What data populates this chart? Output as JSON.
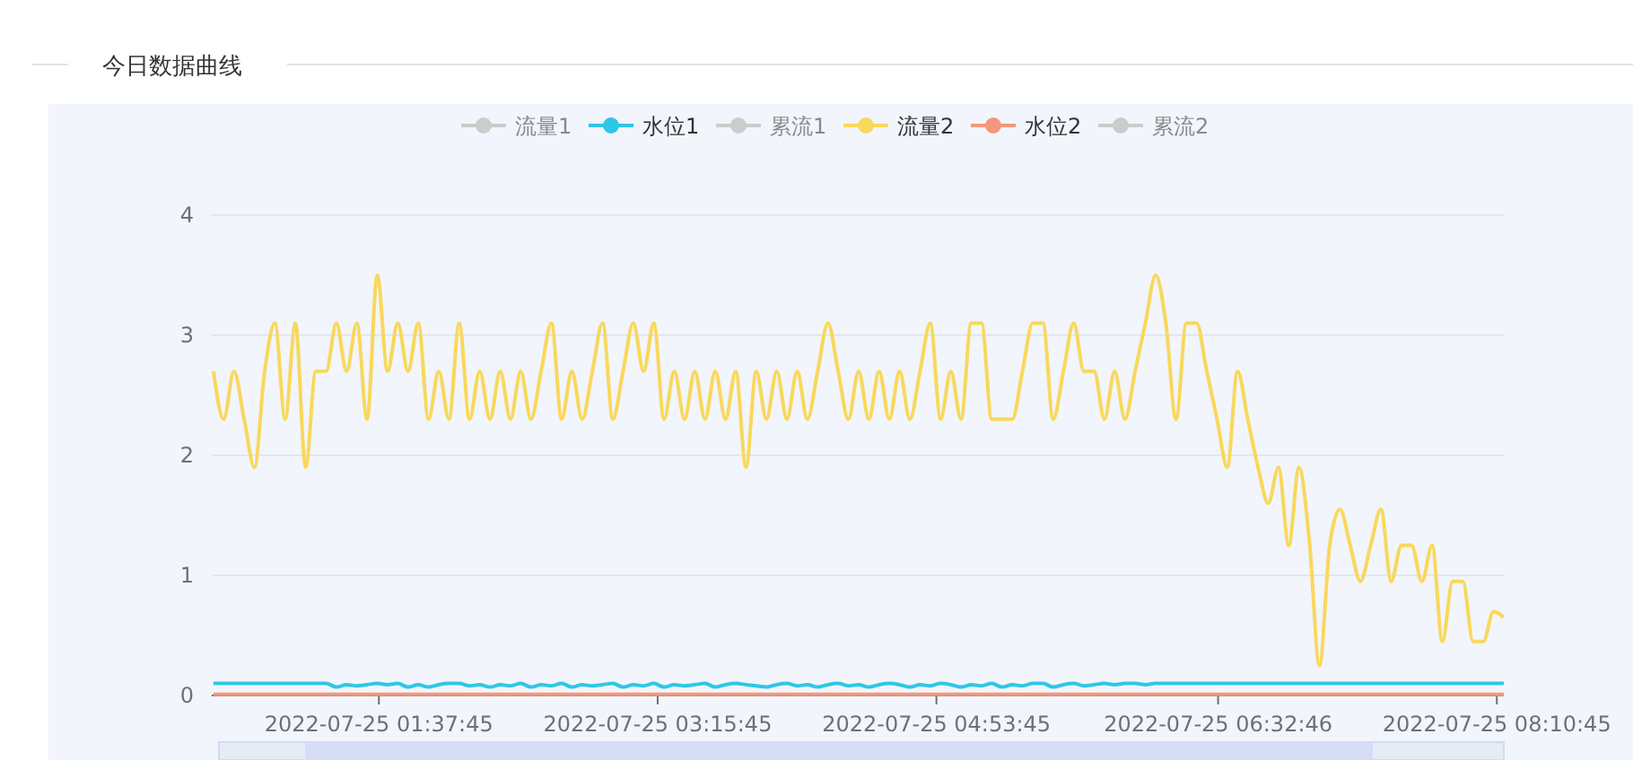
{
  "chart_data": {
    "type": "line",
    "title": "今日数据曲线",
    "legend": "top",
    "grid": "y",
    "ylim": [
      0,
      4
    ],
    "yticks": [
      0,
      1,
      2,
      3,
      4
    ],
    "xlim": [
      "2022-07-25T00:39:00",
      "2022-07-25T08:13:12"
    ],
    "xticks": [
      {
        "value": "2022-07-25T01:37:45",
        "label": "2022-07-25 01:37:45"
      },
      {
        "value": "2022-07-25T03:15:45",
        "label": "2022-07-25 03:15:45"
      },
      {
        "value": "2022-07-25T04:53:45",
        "label": "2022-07-25 04:53:45"
      },
      {
        "value": "2022-07-25T06:32:46",
        "label": "2022-07-25 06:32:46"
      },
      {
        "value": "2022-07-25T08:10:45",
        "label": "2022-07-25 08:10:45"
      }
    ],
    "x": [
      "2022-07-25T00:39:36",
      "2022-07-25T00:43:12",
      "2022-07-25T00:46:48",
      "2022-07-25T00:50:24",
      "2022-07-25T00:54:00",
      "2022-07-25T00:57:36",
      "2022-07-25T01:01:12",
      "2022-07-25T01:04:48",
      "2022-07-25T01:08:24",
      "2022-07-25T01:12:00",
      "2022-07-25T01:15:36",
      "2022-07-25T01:19:12",
      "2022-07-25T01:22:48",
      "2022-07-25T01:26:24",
      "2022-07-25T01:30:00",
      "2022-07-25T01:33:36",
      "2022-07-25T01:37:12",
      "2022-07-25T01:40:48",
      "2022-07-25T01:44:24",
      "2022-07-25T01:48:00",
      "2022-07-25T01:51:36",
      "2022-07-25T01:55:12",
      "2022-07-25T01:58:48",
      "2022-07-25T02:02:24",
      "2022-07-25T02:06:00",
      "2022-07-25T02:09:36",
      "2022-07-25T02:13:12",
      "2022-07-25T02:16:48",
      "2022-07-25T02:20:24",
      "2022-07-25T02:24:00",
      "2022-07-25T02:27:36",
      "2022-07-25T02:31:12",
      "2022-07-25T02:34:48",
      "2022-07-25T02:38:24",
      "2022-07-25T02:42:00",
      "2022-07-25T02:45:36",
      "2022-07-25T02:49:12",
      "2022-07-25T02:52:48",
      "2022-07-25T02:56:24",
      "2022-07-25T03:00:00",
      "2022-07-25T03:03:36",
      "2022-07-25T03:07:12",
      "2022-07-25T03:10:48",
      "2022-07-25T03:14:24",
      "2022-07-25T03:18:00",
      "2022-07-25T03:21:36",
      "2022-07-25T03:25:12",
      "2022-07-25T03:28:48",
      "2022-07-25T03:32:24",
      "2022-07-25T03:36:00",
      "2022-07-25T03:39:36",
      "2022-07-25T03:43:12",
      "2022-07-25T03:46:48",
      "2022-07-25T03:50:24",
      "2022-07-25T03:54:00",
      "2022-07-25T03:57:36",
      "2022-07-25T04:01:12",
      "2022-07-25T04:04:48",
      "2022-07-25T04:08:24",
      "2022-07-25T04:12:00",
      "2022-07-25T04:15:36",
      "2022-07-25T04:19:12",
      "2022-07-25T04:22:48",
      "2022-07-25T04:26:24",
      "2022-07-25T04:30:00",
      "2022-07-25T04:33:36",
      "2022-07-25T04:37:12",
      "2022-07-25T04:40:48",
      "2022-07-25T04:44:24",
      "2022-07-25T04:48:00",
      "2022-07-25T04:51:36",
      "2022-07-25T04:55:12",
      "2022-07-25T04:58:48",
      "2022-07-25T05:02:24",
      "2022-07-25T05:06:00",
      "2022-07-25T05:09:36",
      "2022-07-25T05:13:12",
      "2022-07-25T05:16:48",
      "2022-07-25T05:20:24",
      "2022-07-25T05:24:00",
      "2022-07-25T05:27:36",
      "2022-07-25T05:31:12",
      "2022-07-25T05:34:48",
      "2022-07-25T05:38:24",
      "2022-07-25T05:42:00",
      "2022-07-25T05:45:36",
      "2022-07-25T05:49:12",
      "2022-07-25T05:52:48",
      "2022-07-25T05:56:24",
      "2022-07-25T06:00:00",
      "2022-07-25T06:03:36",
      "2022-07-25T06:07:12",
      "2022-07-25T06:10:48",
      "2022-07-25T06:14:24",
      "2022-07-25T06:18:00",
      "2022-07-25T06:21:36",
      "2022-07-25T06:25:12",
      "2022-07-25T06:28:48",
      "2022-07-25T06:32:24",
      "2022-07-25T06:36:00",
      "2022-07-25T06:39:36",
      "2022-07-25T06:43:12",
      "2022-07-25T06:46:48",
      "2022-07-25T06:50:24",
      "2022-07-25T06:54:00",
      "2022-07-25T06:57:36",
      "2022-07-25T07:01:12",
      "2022-07-25T07:04:48",
      "2022-07-25T07:08:24",
      "2022-07-25T07:12:00",
      "2022-07-25T07:15:36",
      "2022-07-25T07:19:12",
      "2022-07-25T07:22:48",
      "2022-07-25T07:26:24",
      "2022-07-25T07:30:00",
      "2022-07-25T07:33:36",
      "2022-07-25T07:37:12",
      "2022-07-25T07:40:48",
      "2022-07-25T07:44:24",
      "2022-07-25T07:48:00",
      "2022-07-25T07:51:36",
      "2022-07-25T07:55:12",
      "2022-07-25T07:58:48",
      "2022-07-25T08:02:24",
      "2022-07-25T08:06:00",
      "2022-07-25T08:09:36",
      "2022-07-25T08:13:12"
    ],
    "series": [
      {
        "name": "流量1",
        "color": "#cccccc",
        "values": [
          null,
          null,
          null,
          null,
          null,
          null,
          null,
          null,
          null,
          null,
          null,
          null,
          null,
          null,
          null,
          null,
          null,
          null,
          null,
          null,
          null,
          null,
          null,
          null,
          null,
          null,
          null,
          null,
          null,
          null,
          null,
          null,
          null,
          null,
          null,
          null,
          null,
          null,
          null,
          null,
          null,
          null,
          null,
          null,
          null,
          null,
          null,
          null,
          null,
          null,
          null,
          null,
          null,
          null,
          null,
          null,
          null,
          null,
          null,
          null,
          null,
          null,
          null,
          null,
          null,
          null,
          null,
          null,
          null,
          null,
          null,
          null,
          null,
          null,
          null,
          null,
          null,
          null,
          null,
          null,
          null,
          null,
          null,
          null,
          null,
          null,
          null,
          null,
          null,
          null,
          null,
          null,
          null,
          null,
          null,
          null,
          null,
          null,
          null,
          null,
          null,
          null,
          null,
          null,
          null,
          null,
          null,
          null,
          null,
          null,
          null,
          null,
          null,
          null,
          null,
          null,
          null,
          null,
          null,
          null,
          null,
          null,
          null,
          null,
          null,
          null,
          null
        ]
      },
      {
        "name": "水位1",
        "color": "#2ec7e6",
        "values": [
          0.1,
          0.1,
          0.1,
          0.1,
          0.1,
          0.1,
          0.1,
          0.1,
          0.1,
          0.1,
          0.1,
          0.1,
          0.07,
          0.09,
          0.08,
          0.09,
          0.1,
          0.09,
          0.1,
          0.07,
          0.09,
          0.07,
          0.09,
          0.1,
          0.1,
          0.08,
          0.09,
          0.07,
          0.09,
          0.08,
          0.1,
          0.07,
          0.09,
          0.08,
          0.1,
          0.07,
          0.09,
          0.08,
          0.09,
          0.1,
          0.07,
          0.09,
          0.08,
          0.1,
          0.07,
          0.09,
          0.08,
          0.09,
          0.1,
          0.07,
          0.09,
          0.1,
          0.09,
          0.08,
          0.07,
          0.09,
          0.1,
          0.08,
          0.09,
          0.07,
          0.09,
          0.1,
          0.08,
          0.09,
          0.07,
          0.09,
          0.1,
          0.09,
          0.07,
          0.09,
          0.08,
          0.1,
          0.09,
          0.07,
          0.09,
          0.08,
          0.1,
          0.07,
          0.09,
          0.08,
          0.1,
          0.1,
          0.07,
          0.09,
          0.1,
          0.08,
          0.09,
          0.1,
          0.09,
          0.1,
          0.1,
          0.09,
          0.1,
          0.1,
          0.1,
          0.1,
          0.1,
          0.1,
          0.1,
          0.1,
          0.1,
          0.1,
          0.1,
          0.1,
          0.1,
          0.1,
          0.1,
          0.1,
          0.1,
          0.1,
          0.1,
          0.1,
          0.1,
          0.1,
          0.1,
          0.1,
          0.1,
          0.1,
          0.1,
          0.1,
          0.1,
          0.1,
          0.1,
          0.1,
          0.1,
          0.1,
          0.1
        ]
      },
      {
        "name": "累流1",
        "color": "#cccccc",
        "values": [
          null,
          null,
          null,
          null,
          null,
          null,
          null,
          null,
          null,
          null,
          null,
          null,
          null,
          null,
          null,
          null,
          null,
          null,
          null,
          null,
          null,
          null,
          null,
          null,
          null,
          null,
          null,
          null,
          null,
          null,
          null,
          null,
          null,
          null,
          null,
          null,
          null,
          null,
          null,
          null,
          null,
          null,
          null,
          null,
          null,
          null,
          null,
          null,
          null,
          null,
          null,
          null,
          null,
          null,
          null,
          null,
          null,
          null,
          null,
          null,
          null,
          null,
          null,
          null,
          null,
          null,
          null,
          null,
          null,
          null,
          null,
          null,
          null,
          null,
          null,
          null,
          null,
          null,
          null,
          null,
          null,
          null,
          null,
          null,
          null,
          null,
          null,
          null,
          null,
          null,
          null,
          null,
          null,
          null,
          null,
          null,
          null,
          null,
          null,
          null,
          null,
          null,
          null,
          null,
          null,
          null,
          null,
          null,
          null,
          null,
          null,
          null,
          null,
          null,
          null,
          null,
          null,
          null,
          null,
          null,
          null,
          null,
          null,
          null,
          null,
          null,
          null
        ]
      },
      {
        "name": "流量2",
        "color": "#f9d85b",
        "values": [
          2.7,
          2.3,
          2.7,
          2.3,
          1.9,
          2.7,
          3.1,
          2.3,
          3.1,
          1.9,
          2.7,
          2.7,
          3.1,
          2.7,
          3.1,
          2.3,
          3.5,
          2.7,
          3.1,
          2.7,
          3.1,
          2.3,
          2.7,
          2.3,
          3.1,
          2.3,
          2.7,
          2.3,
          2.7,
          2.3,
          2.7,
          2.3,
          2.7,
          3.1,
          2.3,
          2.7,
          2.3,
          2.7,
          3.1,
          2.3,
          2.7,
          3.1,
          2.7,
          3.1,
          2.3,
          2.7,
          2.3,
          2.7,
          2.3,
          2.7,
          2.3,
          2.7,
          1.9,
          2.7,
          2.3,
          2.7,
          2.3,
          2.7,
          2.3,
          2.7,
          3.1,
          2.7,
          2.3,
          2.7,
          2.3,
          2.7,
          2.3,
          2.7,
          2.3,
          2.7,
          3.1,
          2.3,
          2.7,
          2.3,
          3.1,
          3.1,
          2.3,
          2.3,
          2.3,
          2.7,
          3.1,
          3.1,
          2.3,
          2.7,
          3.1,
          2.7,
          2.7,
          2.3,
          2.7,
          2.3,
          2.7,
          3.1,
          3.5,
          3.1,
          2.3,
          3.1,
          3.1,
          2.7,
          2.3,
          1.9,
          2.7,
          2.3,
          1.9,
          1.6,
          1.9,
          1.25,
          1.9,
          1.3,
          0.25,
          1.25,
          1.55,
          1.25,
          0.95,
          1.25,
          1.55,
          0.95,
          1.25,
          1.25,
          0.95,
          1.25,
          0.45,
          0.95,
          0.95,
          0.45,
          0.45,
          0.7,
          0.65
        ]
      },
      {
        "name": "水位2",
        "color": "#f4977a",
        "values": [
          0.01,
          0.01,
          0.01,
          0.01,
          0.01,
          0.01,
          0.01,
          0.01,
          0.01,
          0.01,
          0.01,
          0.01,
          0.01,
          0.01,
          0.01,
          0.01,
          0.01,
          0.01,
          0.01,
          0.01,
          0.01,
          0.01,
          0.01,
          0.01,
          0.01,
          0.01,
          0.01,
          0.01,
          0.01,
          0.01,
          0.01,
          0.01,
          0.01,
          0.01,
          0.01,
          0.01,
          0.01,
          0.01,
          0.01,
          0.01,
          0.01,
          0.01,
          0.01,
          0.01,
          0.01,
          0.01,
          0.01,
          0.01,
          0.01,
          0.01,
          0.01,
          0.01,
          0.01,
          0.01,
          0.01,
          0.01,
          0.01,
          0.01,
          0.01,
          0.01,
          0.01,
          0.01,
          0.01,
          0.01,
          0.01,
          0.01,
          0.01,
          0.01,
          0.01,
          0.01,
          0.01,
          0.01,
          0.01,
          0.01,
          0.01,
          0.01,
          0.01,
          0.01,
          0.01,
          0.01,
          0.01,
          0.01,
          0.01,
          0.01,
          0.01,
          0.01,
          0.01,
          0.01,
          0.01,
          0.01,
          0.01,
          0.01,
          0.01,
          0.01,
          0.01,
          0.01,
          0.01,
          0.01,
          0.01,
          0.01,
          0.01,
          0.01,
          0.01,
          0.01,
          0.01,
          0.01,
          0.01,
          0.01,
          0.01,
          0.01,
          0.01,
          0.01,
          0.01,
          0.01,
          0.01,
          0.01,
          0.01,
          0.01,
          0.01,
          0.01,
          0.01,
          0.01,
          0.01,
          0.01,
          0.01,
          0.01,
          0.01
        ]
      },
      {
        "name": "累流2",
        "color": "#cccccc",
        "values": [
          null,
          null,
          null,
          null,
          null,
          null,
          null,
          null,
          null,
          null,
          null,
          null,
          null,
          null,
          null,
          null,
          null,
          null,
          null,
          null,
          null,
          null,
          null,
          null,
          null,
          null,
          null,
          null,
          null,
          null,
          null,
          null,
          null,
          null,
          null,
          null,
          null,
          null,
          null,
          null,
          null,
          null,
          null,
          null,
          null,
          null,
          null,
          null,
          null,
          null,
          null,
          null,
          null,
          null,
          null,
          null,
          null,
          null,
          null,
          null,
          null,
          null,
          null,
          null,
          null,
          null,
          null,
          null,
          null,
          null,
          null,
          null,
          null,
          null,
          null,
          null,
          null,
          null,
          null,
          null,
          null,
          null,
          null,
          null,
          null,
          null,
          null,
          null,
          null,
          null,
          null,
          null,
          null,
          null,
          null,
          null,
          null,
          null,
          null,
          null,
          null,
          null,
          null,
          null,
          null,
          null,
          null,
          null,
          null,
          null,
          null,
          null,
          null,
          null,
          null,
          null,
          null,
          null,
          null,
          null,
          null,
          null,
          null,
          null,
          null,
          null,
          null
        ]
      }
    ]
  }
}
